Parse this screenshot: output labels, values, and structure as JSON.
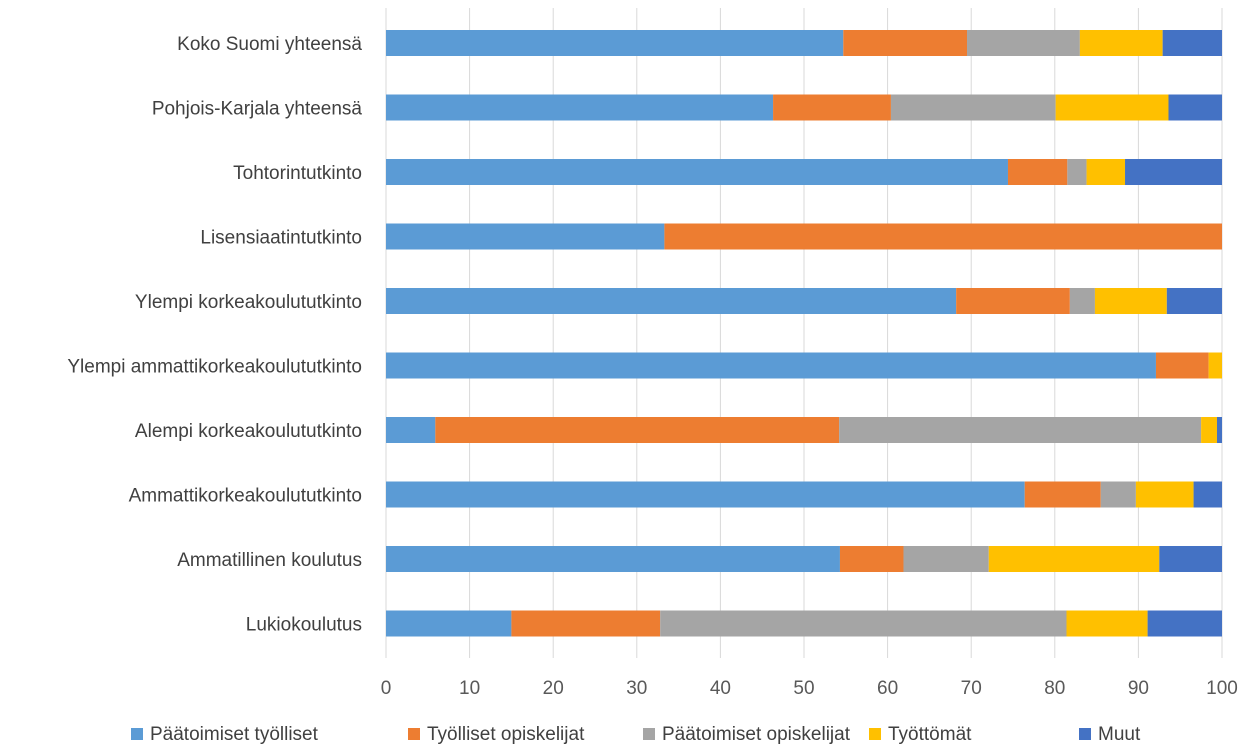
{
  "chart_data": {
    "type": "bar",
    "orientation": "horizontal",
    "stacked": true,
    "title": "",
    "xlabel": "",
    "ylabel": "",
    "xlim": [
      0,
      100
    ],
    "xticks": [
      0,
      10,
      20,
      30,
      40,
      50,
      60,
      70,
      80,
      90,
      100
    ],
    "grid": "vertical",
    "legend_position": "bottom",
    "categories": [
      "Koko Suomi yhteensä",
      "Pohjois-Karjala yhteensä",
      "Tohtorintutkinto",
      "Lisensiaatintutkinto",
      "Ylempi korkeakoulututkinto",
      "Ylempi ammattikorkeakoulututkinto",
      "Alempi korkeakoulututkinto",
      "Ammattikorkeakoulututkinto",
      "Ammatillinen koulutus",
      "Lukiokoulutus"
    ],
    "series": [
      {
        "name": "Päätoimiset työlliset",
        "color": "#5b9bd5",
        "values": [
          54.7,
          46.3,
          74.4,
          33.3,
          68.2,
          92.1,
          5.9,
          76.4,
          54.3,
          15.0
        ]
      },
      {
        "name": "Työlliset opiskelijat",
        "color": "#ed7d31",
        "values": [
          14.8,
          14.1,
          7.1,
          66.7,
          13.6,
          6.3,
          48.3,
          9.1,
          7.6,
          17.8
        ]
      },
      {
        "name": "Päätoimiset opiskelijat",
        "color": "#a5a5a5",
        "values": [
          13.5,
          19.7,
          2.3,
          0,
          3.0,
          0,
          43.3,
          4.2,
          10.2,
          48.6
        ]
      },
      {
        "name": "Työttömät",
        "color": "#ffc000",
        "values": [
          9.9,
          13.5,
          4.6,
          0,
          8.6,
          1.6,
          1.9,
          6.9,
          20.4,
          9.7
        ]
      },
      {
        "name": "Muut",
        "color": "#4472c4",
        "values": [
          7.1,
          6.4,
          11.6,
          0,
          6.6,
          0,
          0.6,
          3.4,
          7.5,
          8.9
        ]
      }
    ]
  }
}
